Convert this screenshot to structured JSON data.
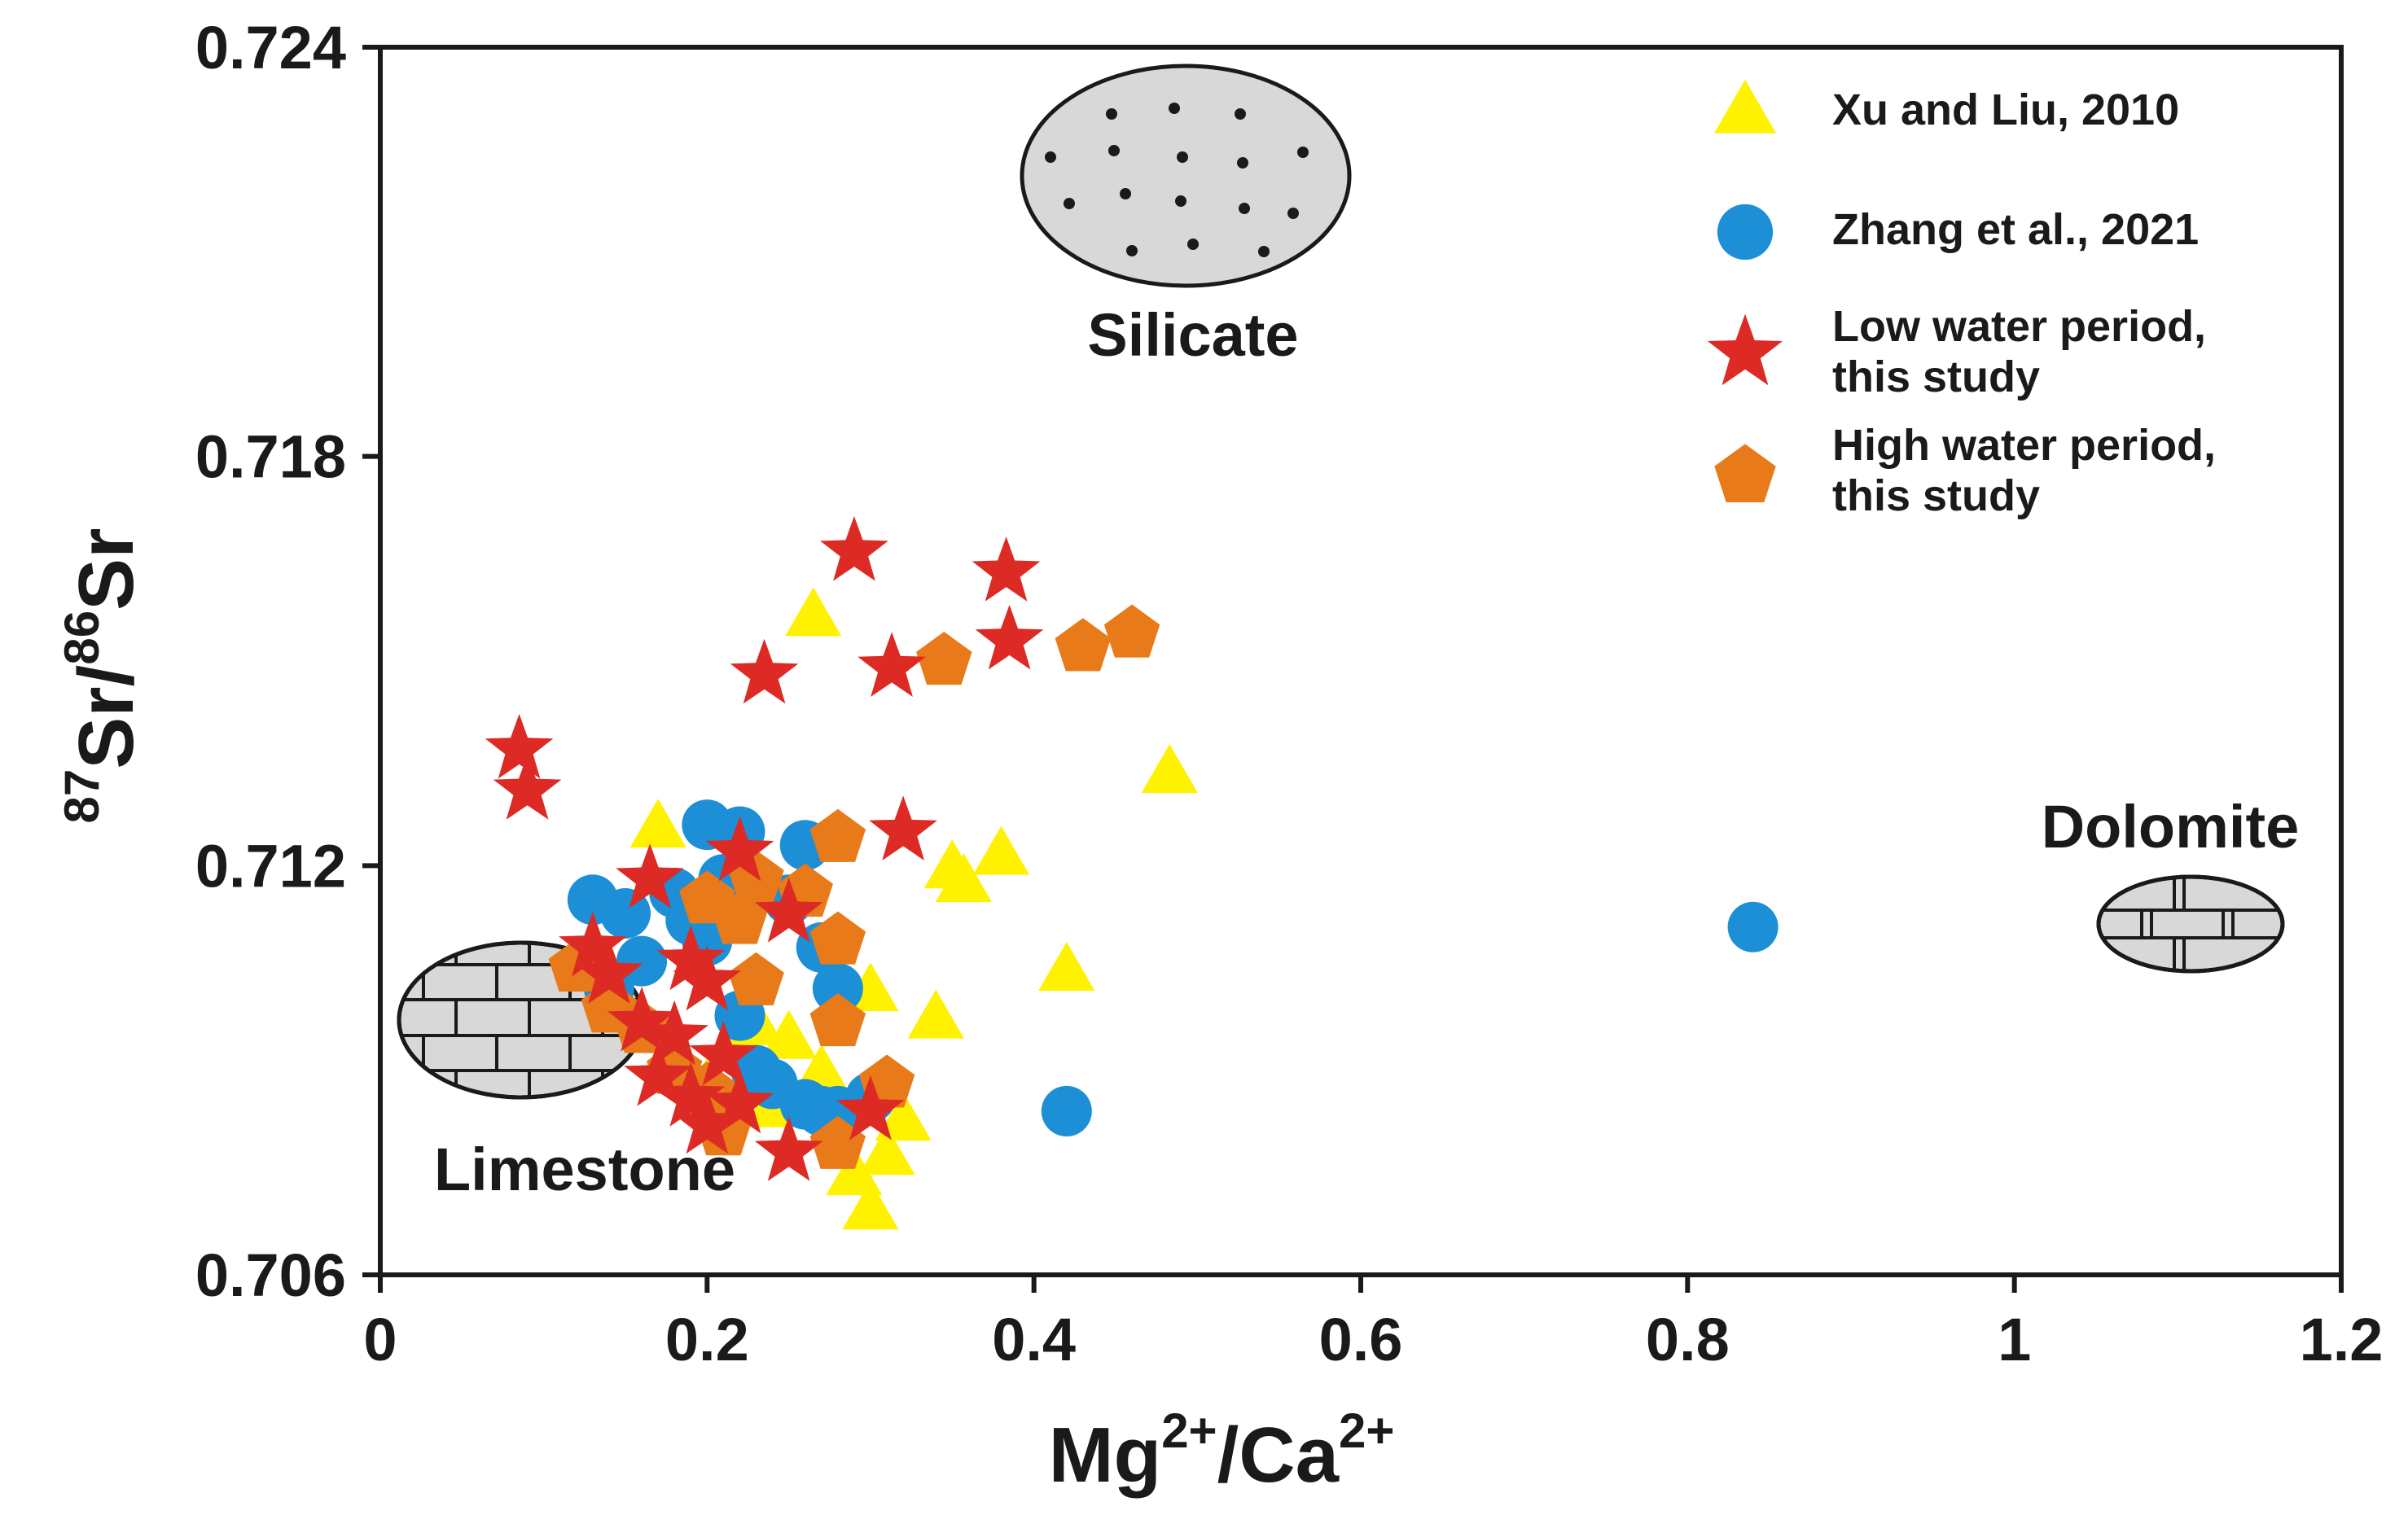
{
  "chart_data": {
    "type": "scatter",
    "title": "",
    "xlabel": {
      "base1": "Mg",
      "sup1": "2+",
      "mid": "/Ca",
      "sup2": "2+"
    },
    "ylabel": {
      "sup1": "87",
      "base1": "Sr/",
      "sup2": "86",
      "base2": "Sr"
    },
    "xlim": [
      0,
      1.2
    ],
    "ylim": [
      0.706,
      0.724
    ],
    "x_ticks": [
      {
        "value": 0,
        "label": "0"
      },
      {
        "value": 0.2,
        "label": "0.2"
      },
      {
        "value": 0.4,
        "label": "0.4"
      },
      {
        "value": 0.6,
        "label": "0.6"
      },
      {
        "value": 0.8,
        "label": "0.8"
      },
      {
        "value": 1.0,
        "label": "1"
      },
      {
        "value": 1.2,
        "label": "1.2"
      }
    ],
    "y_ticks": [
      {
        "value": 0.706,
        "label": "0.706"
      },
      {
        "value": 0.712,
        "label": "0.712"
      },
      {
        "value": 0.718,
        "label": "0.718"
      },
      {
        "value": 0.724,
        "label": "0.724"
      }
    ],
    "legend_position": "top-right",
    "colors": {
      "yellow": "#fff200",
      "blue": "#1c8fd6",
      "red": "#dd2a24",
      "orange": "#e87a1a",
      "axis": "#1a1a1a",
      "region_fill": "#d8d8d8"
    },
    "series": [
      {
        "name": "Xu and Liu, 2010",
        "marker": "triangle",
        "color": "#fff200",
        "points": [
          [
            0.265,
            0.7157
          ],
          [
            0.483,
            0.7134
          ],
          [
            0.17,
            0.7126
          ],
          [
            0.357,
            0.7118
          ],
          [
            0.38,
            0.7122
          ],
          [
            0.35,
            0.712
          ],
          [
            0.42,
            0.7105
          ],
          [
            0.34,
            0.7098
          ],
          [
            0.3,
            0.7102
          ],
          [
            0.25,
            0.7095
          ],
          [
            0.23,
            0.7097
          ],
          [
            0.27,
            0.709
          ],
          [
            0.32,
            0.7083
          ],
          [
            0.31,
            0.7078
          ],
          [
            0.29,
            0.7075
          ],
          [
            0.3,
            0.707
          ],
          [
            0.2,
            0.7088
          ],
          [
            0.24,
            0.7085
          ]
        ]
      },
      {
        "name": "Zhang et al., 2021",
        "marker": "circle",
        "color": "#1c8fd6",
        "points": [
          [
            0.84,
            0.7111
          ],
          [
            0.42,
            0.7084
          ],
          [
            0.2,
            0.7126
          ],
          [
            0.22,
            0.7125
          ],
          [
            0.26,
            0.7123
          ],
          [
            0.13,
            0.7115
          ],
          [
            0.15,
            0.7113
          ],
          [
            0.18,
            0.7116
          ],
          [
            0.2,
            0.7109
          ],
          [
            0.16,
            0.7106
          ],
          [
            0.27,
            0.7108
          ],
          [
            0.28,
            0.7102
          ],
          [
            0.22,
            0.7098
          ],
          [
            0.14,
            0.7102
          ],
          [
            0.23,
            0.709
          ],
          [
            0.24,
            0.7088
          ],
          [
            0.26,
            0.7085
          ],
          [
            0.27,
            0.7084
          ],
          [
            0.28,
            0.7084
          ],
          [
            0.3,
            0.7086
          ],
          [
            0.25,
            0.7115
          ],
          [
            0.19,
            0.7112
          ],
          [
            0.21,
            0.7118
          ]
        ]
      },
      {
        "name": "Low water period, this study",
        "marker": "star",
        "color": "#dd2a24",
        "points": [
          [
            0.29,
            0.7166
          ],
          [
            0.383,
            0.7163
          ],
          [
            0.385,
            0.7153
          ],
          [
            0.313,
            0.7149
          ],
          [
            0.235,
            0.7148
          ],
          [
            0.085,
            0.7137
          ],
          [
            0.09,
            0.7131
          ],
          [
            0.32,
            0.7125
          ],
          [
            0.22,
            0.7122
          ],
          [
            0.165,
            0.7118
          ],
          [
            0.25,
            0.7113
          ],
          [
            0.13,
            0.7108
          ],
          [
            0.14,
            0.7104
          ],
          [
            0.19,
            0.7106
          ],
          [
            0.2,
            0.7103
          ],
          [
            0.16,
            0.7097
          ],
          [
            0.18,
            0.7095
          ],
          [
            0.21,
            0.7092
          ],
          [
            0.17,
            0.7089
          ],
          [
            0.19,
            0.7086
          ],
          [
            0.2,
            0.7082
          ],
          [
            0.25,
            0.7078
          ],
          [
            0.3,
            0.7084
          ],
          [
            0.22,
            0.7085
          ]
        ]
      },
      {
        "name": "High water period, this study",
        "marker": "pentagon",
        "color": "#e87a1a",
        "points": [
          [
            0.46,
            0.7154
          ],
          [
            0.43,
            0.7152
          ],
          [
            0.345,
            0.715
          ],
          [
            0.28,
            0.7124
          ],
          [
            0.23,
            0.7118
          ],
          [
            0.26,
            0.7116
          ],
          [
            0.2,
            0.7115
          ],
          [
            0.22,
            0.7112
          ],
          [
            0.12,
            0.7105
          ],
          [
            0.28,
            0.7109
          ],
          [
            0.23,
            0.7103
          ],
          [
            0.14,
            0.7099
          ],
          [
            0.28,
            0.7097
          ],
          [
            0.16,
            0.7096
          ],
          [
            0.18,
            0.709
          ],
          [
            0.2,
            0.7087
          ],
          [
            0.31,
            0.7088
          ],
          [
            0.28,
            0.7079
          ],
          [
            0.21,
            0.7081
          ]
        ]
      }
    ],
    "regions": [
      {
        "name": "Silicate",
        "label": "Silicate",
        "pattern": "dots"
      },
      {
        "name": "Limestone",
        "label": "Limestone",
        "pattern": "brick"
      },
      {
        "name": "Dolomite",
        "label": "Dolomite",
        "pattern": "brick"
      }
    ]
  }
}
